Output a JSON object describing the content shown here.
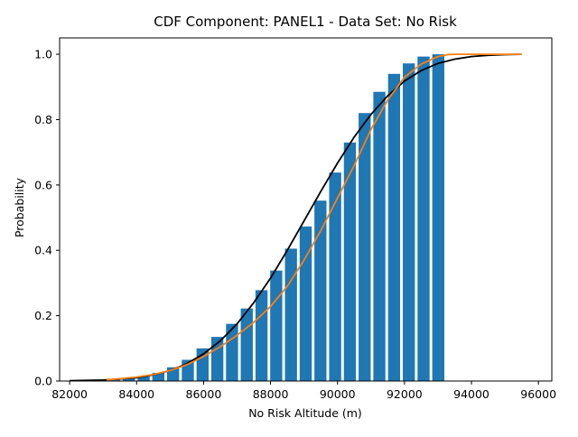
{
  "chart_data": {
    "type": "bar",
    "title": "CDF Component: PANEL1 - Data Set: No Risk",
    "xlabel": "No Risk Altitude (m)",
    "ylabel": "Probability",
    "xlim": [
      81700,
      96400
    ],
    "ylim": [
      0,
      1.05
    ],
    "xticks": [
      82000,
      84000,
      86000,
      88000,
      90000,
      92000,
      94000,
      96000
    ],
    "xtick_labels": [
      "82000",
      "84000",
      "86000",
      "88000",
      "90000",
      "92000",
      "94000",
      "96000"
    ],
    "yticks": [
      0,
      0.2,
      0.4,
      0.6,
      0.8,
      1.0
    ],
    "ytick_labels": [
      "0.0",
      "0.2",
      "0.4",
      "0.6",
      "0.8",
      "1.0"
    ],
    "grid": false,
    "legend": false,
    "bar_width": 360,
    "bars": {
      "x": [
        82450,
        82890,
        83330,
        83770,
        84210,
        84650,
        85090,
        85530,
        85970,
        86410,
        86850,
        87290,
        87730,
        88170,
        88610,
        89050,
        89490,
        89930,
        90370,
        90810,
        91250,
        91690,
        92130,
        92570,
        93010
      ],
      "values": [
        0.002,
        0.003,
        0.005,
        0.009,
        0.015,
        0.025,
        0.042,
        0.065,
        0.1,
        0.135,
        0.175,
        0.222,
        0.278,
        0.338,
        0.405,
        0.473,
        0.552,
        0.638,
        0.73,
        0.82,
        0.885,
        0.94,
        0.972,
        0.993,
        1.0
      ]
    },
    "series": [
      {
        "type": "line",
        "color": "#000000",
        "x": [
          82000,
          83000,
          84000,
          84500,
          85000,
          85500,
          86000,
          86500,
          87000,
          87500,
          88000,
          88500,
          89000,
          89500,
          90000,
          90500,
          91000,
          91500,
          92000,
          92500,
          93000,
          93500,
          94000,
          94500,
          95000,
          95500
        ],
        "values": [
          0.001,
          0.003,
          0.01,
          0.019,
          0.032,
          0.053,
          0.083,
          0.123,
          0.175,
          0.24,
          0.315,
          0.4,
          0.49,
          0.58,
          0.667,
          0.747,
          0.816,
          0.873,
          0.918,
          0.95,
          0.972,
          0.985,
          0.993,
          0.997,
          0.999,
          1.0
        ]
      },
      {
        "type": "line",
        "color": "#ff7f0e",
        "x": [
          83100,
          84000,
          84500,
          85000,
          85500,
          86000,
          86500,
          87000,
          87500,
          88000,
          88500,
          89000,
          89500,
          90000,
          90500,
          91000,
          91500,
          92000,
          92500,
          93000,
          93300,
          93500,
          94000,
          95000,
          95500
        ],
        "values": [
          0.003,
          0.012,
          0.02,
          0.032,
          0.05,
          0.075,
          0.105,
          0.14,
          0.18,
          0.228,
          0.29,
          0.37,
          0.46,
          0.56,
          0.66,
          0.77,
          0.86,
          0.93,
          0.97,
          0.993,
          0.999,
          1.0,
          1.0,
          1.0,
          1.0
        ]
      }
    ],
    "colors": {
      "bars": "#1f77b4",
      "axes": "#000000"
    }
  }
}
